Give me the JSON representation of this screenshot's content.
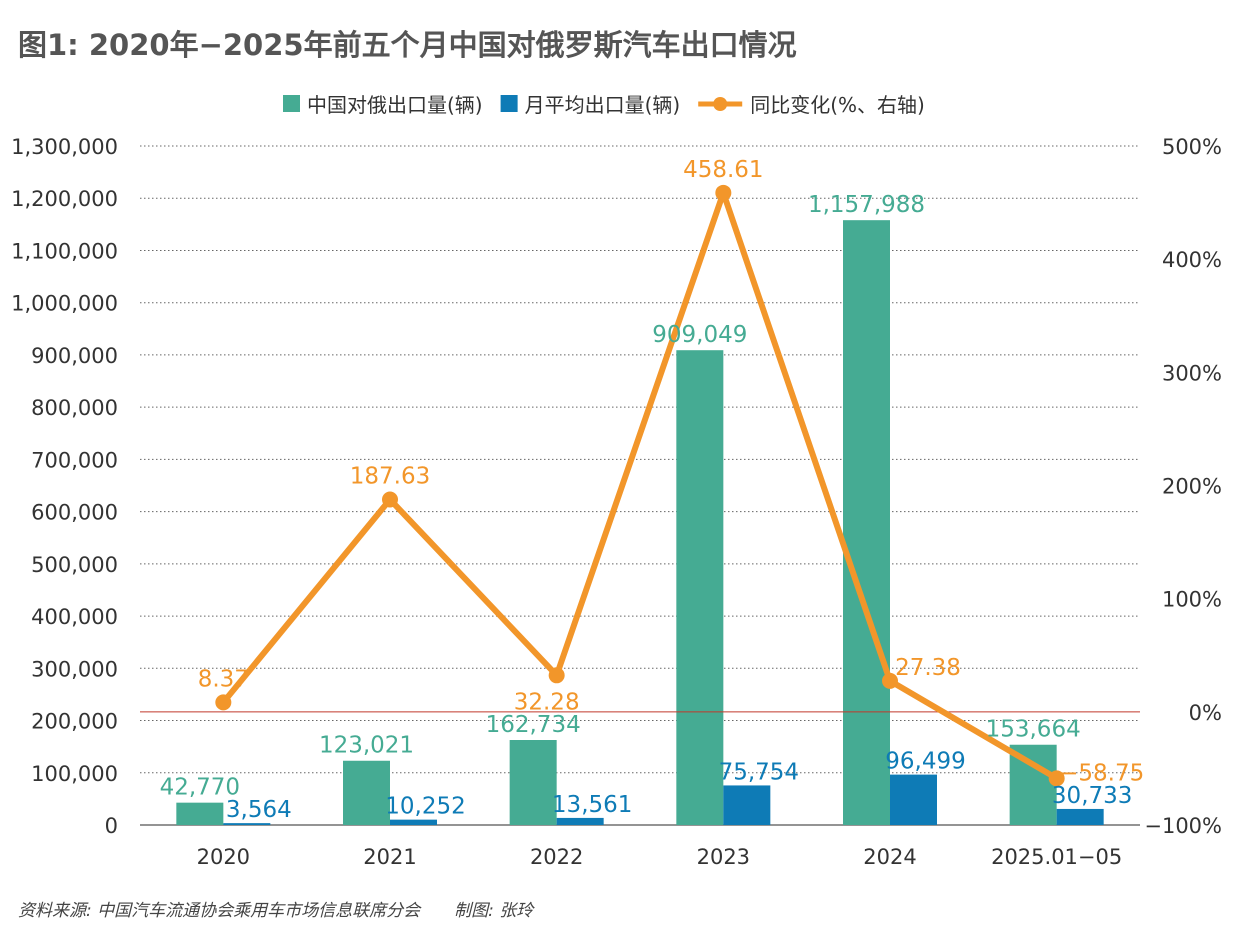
{
  "title": "图1: 2020年−2025年前五个月中国对俄罗斯汽车出口情况",
  "source": "资料来源: 中国汽车流通协会乘用车市场信息联席分会",
  "credit": "制图: 张玲",
  "colors": {
    "bar_total": "#45AB93",
    "bar_monthly": "#0E7BB6",
    "line": "#F2962A",
    "zero_line": "#C0392B",
    "grid": "#666666",
    "axis_text": "#333333"
  },
  "chart_data": {
    "type": "bar",
    "categories": [
      "2020",
      "2021",
      "2022",
      "2023",
      "2024",
      "2025.01−05"
    ],
    "series": [
      {
        "name": "中国对俄出口量(辆)",
        "kind": "bar",
        "axis": "left",
        "values": [
          42770,
          123021,
          162734,
          909049,
          1157988,
          153664
        ],
        "labels": [
          "42,770",
          "123,021",
          "162,734",
          "909,049",
          "1,157,988",
          "153,664"
        ]
      },
      {
        "name": "月平均出口量(辆)",
        "kind": "bar",
        "axis": "left",
        "values": [
          3564,
          10252,
          13561,
          75754,
          96499,
          30733
        ],
        "labels": [
          "3,564",
          "10,252",
          "13,561",
          "75,754",
          "96,499",
          "30,733"
        ]
      },
      {
        "name": "同比变化(%、右轴)",
        "kind": "line",
        "axis": "right",
        "values": [
          8.37,
          187.63,
          32.28,
          458.61,
          27.38,
          -58.75
        ],
        "labels": [
          "8.37",
          "187.63",
          "32.28",
          "458.61",
          "27.38",
          "−58.75"
        ]
      }
    ],
    "left_axis": {
      "ylim": [
        0,
        1300000
      ],
      "ticks": [
        "0",
        "100,000",
        "200,000",
        "300,000",
        "400,000",
        "500,000",
        "600,000",
        "700,000",
        "800,000",
        "900,000",
        "1,000,000",
        "1,100,000",
        "1,200,000",
        "1,300,000"
      ]
    },
    "right_axis": {
      "ylim": [
        -100,
        500
      ],
      "ticks": [
        "−100%",
        "0%",
        "100%",
        "200%",
        "300%",
        "400%",
        "500%"
      ]
    },
    "grid": true,
    "legend_position": "top"
  }
}
